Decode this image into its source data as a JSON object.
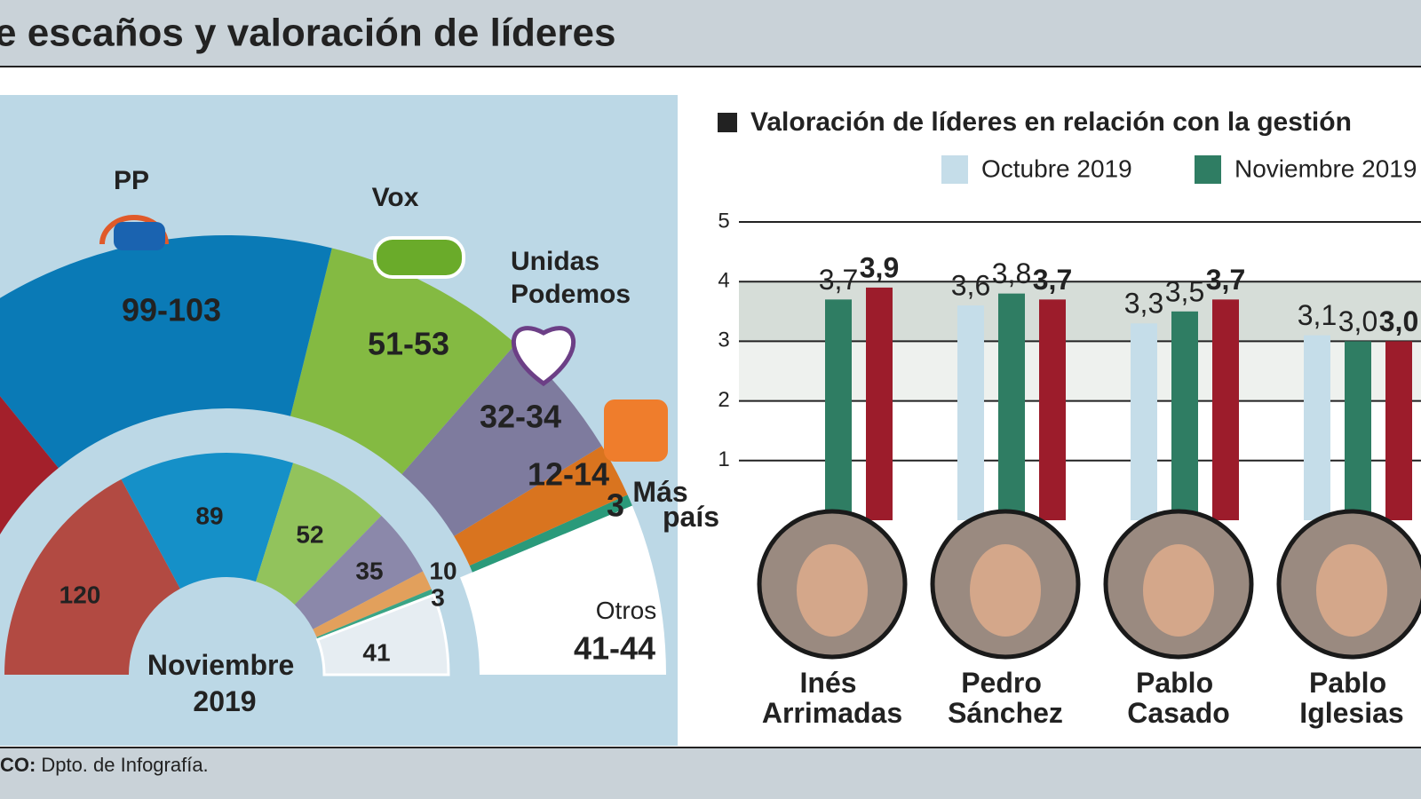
{
  "header": {
    "title": "e escaños y valoración de líderes"
  },
  "footer": {
    "label": "CO:",
    "text": "Dpto. de Infografía."
  },
  "chart_data": [
    {
      "type": "hemicycle",
      "inner_label": "Noviembre 2019",
      "categories": [
        null,
        "PP",
        "Vox",
        "Unidas Podemos",
        null,
        "Más país",
        "Otros"
      ],
      "previous": {
        "values": [
          120,
          89,
          52,
          35,
          10,
          3,
          41
        ],
        "colors": [
          "#b24a42",
          "#1590c8",
          "#92c35c",
          "#8b88aa",
          "#e2a05c",
          "#3aa586",
          "#e6edf2"
        ]
      },
      "estimate": {
        "low": [
          null,
          99,
          51,
          32,
          12,
          3,
          41
        ],
        "high": [
          null,
          103,
          53,
          34,
          14,
          3,
          44
        ],
        "value_labels": [
          null,
          "99-103",
          "51-53",
          "32-34",
          "12-14",
          "3",
          "41-44"
        ],
        "colors": [
          "#a3202b",
          "#0a7ab6",
          "#84ba42",
          "#7e7b9e",
          "#d9741f",
          "#2a9a7a",
          "#ffffff"
        ]
      }
    },
    {
      "type": "bar",
      "title": "Valoración de líderes en relación con la gestión",
      "categories": [
        "Inés Arrimadas",
        "Pedro Sánchez",
        "Pablo Casado",
        "Pablo Iglesias"
      ],
      "series": [
        {
          "name": "Octubre 2019",
          "color": "#c5dde9",
          "values": [
            null,
            3.6,
            3.3,
            3.1
          ],
          "value_labels": [
            null,
            "3,6",
            "3,3",
            "3,1"
          ]
        },
        {
          "name": "Noviembre 2019",
          "color": "#2f7d63",
          "values": [
            3.7,
            3.8,
            3.5,
            3.0
          ],
          "value_labels": [
            "3,7",
            "3,8",
            "3,5",
            "3,0"
          ]
        },
        {
          "color": "#9c1c2b",
          "values": [
            3.9,
            3.7,
            3.7,
            3.0
          ],
          "value_labels": [
            "3,9",
            "3,7",
            "3,7",
            "3,0"
          ]
        }
      ],
      "ylim": [
        0,
        5
      ],
      "yticks": [
        1,
        2,
        3,
        4,
        5
      ],
      "grid": true
    }
  ]
}
